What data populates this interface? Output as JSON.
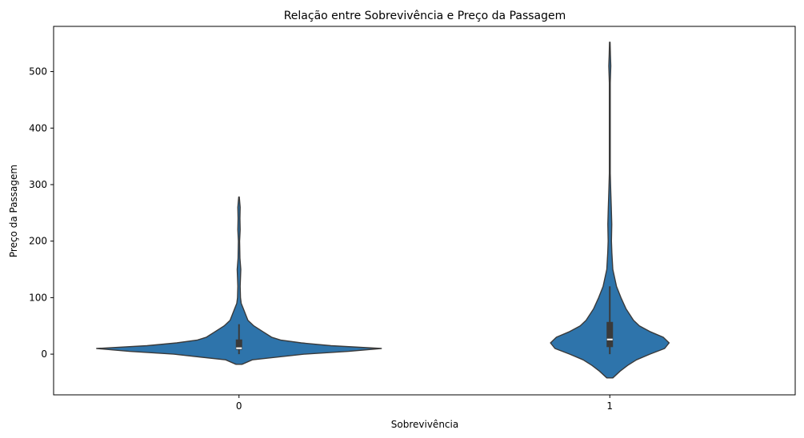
{
  "chart_data": {
    "type": "violin",
    "title": "Relação entre Sobrevivência e Preço da Passagem",
    "xlabel": "Sobrevivência",
    "ylabel": "Preço da Passagem",
    "categories": [
      "0",
      "1"
    ],
    "ylim": [
      -72,
      580
    ],
    "yticks": [
      0,
      100,
      200,
      300,
      400,
      500
    ],
    "grid": false,
    "color": "#2e74ab",
    "edge_color": "#3a3a3a",
    "box_color": "#3a3a3a",
    "median_color": "#ffffff",
    "violins": [
      {
        "category": "0",
        "min": 0,
        "q1": 7.9,
        "median": 10.5,
        "q3": 26,
        "whisker_high": 53,
        "kde_range": [
          -18,
          278
        ],
        "density": [
          [
            -18,
            0.02
          ],
          [
            -10,
            0.09
          ],
          [
            0,
            0.44
          ],
          [
            5,
            0.74
          ],
          [
            10,
            0.96
          ],
          [
            15,
            0.62
          ],
          [
            20,
            0.42
          ],
          [
            25,
            0.28
          ],
          [
            30,
            0.22
          ],
          [
            40,
            0.16
          ],
          [
            50,
            0.1
          ],
          [
            60,
            0.06
          ],
          [
            70,
            0.045
          ],
          [
            80,
            0.03
          ],
          [
            90,
            0.015
          ],
          [
            100,
            0.01
          ],
          [
            120,
            0.008
          ],
          [
            150,
            0.012
          ],
          [
            170,
            0.006
          ],
          [
            200,
            0.004
          ],
          [
            220,
            0.008
          ],
          [
            240,
            0.006
          ],
          [
            260,
            0.008
          ],
          [
            278,
            0.002
          ]
        ]
      },
      {
        "category": "1",
        "min": 0,
        "q1": 12.5,
        "median": 26,
        "q3": 57,
        "whisker_high": 120,
        "kde_range": [
          -42,
          552
        ],
        "density": [
          [
            -42,
            0.02
          ],
          [
            -30,
            0.07
          ],
          [
            -20,
            0.12
          ],
          [
            -10,
            0.18
          ],
          [
            0,
            0.27
          ],
          [
            10,
            0.37
          ],
          [
            20,
            0.4
          ],
          [
            30,
            0.36
          ],
          [
            40,
            0.27
          ],
          [
            50,
            0.2
          ],
          [
            60,
            0.16
          ],
          [
            80,
            0.11
          ],
          [
            100,
            0.075
          ],
          [
            120,
            0.045
          ],
          [
            150,
            0.02
          ],
          [
            180,
            0.014
          ],
          [
            200,
            0.011
          ],
          [
            230,
            0.013
          ],
          [
            260,
            0.01
          ],
          [
            290,
            0.006
          ],
          [
            320,
            0.003
          ],
          [
            400,
            0.003
          ],
          [
            480,
            0.003
          ],
          [
            510,
            0.007
          ],
          [
            530,
            0.004
          ],
          [
            552,
            0.002
          ]
        ]
      }
    ]
  }
}
